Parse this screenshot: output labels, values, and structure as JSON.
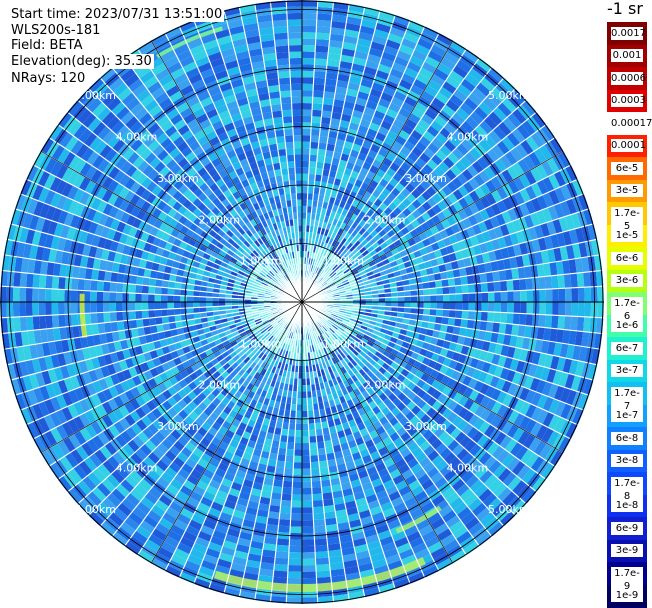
{
  "info": {
    "start_time": "Start time: 2023/07/31 13:51:00",
    "device": "WLS200s-181",
    "field": "Field: BETA",
    "elevation": "Elevation(deg): 35.30",
    "nrays": "NRays: 120"
  },
  "unit": "-1 sr",
  "range_rings": {
    "labels": [
      "1.00km",
      "2.00km",
      "3.00km",
      "4.00km",
      "5.00km"
    ],
    "values_km": [
      1,
      2,
      3,
      4,
      5
    ]
  },
  "colorbar": {
    "labels": [
      "0.0017",
      "0.001",
      "0.0006",
      "0.0003",
      "0.00017",
      "0.0001",
      "6e-5",
      "3e-5",
      "1.7e-5",
      "1e-5",
      "6e-6",
      "3e-6",
      "1.7e-6",
      "1e-6",
      "6e-7",
      "3e-7",
      "1.7e-7",
      "1e-7",
      "6e-8",
      "3e-8",
      "1.7e-8",
      "1e-8",
      "6e-9",
      "3e-9",
      "1.7e-9",
      "1e-9"
    ],
    "colors": [
      "#800000",
      "#a00000",
      "#c00000",
      "#e00000",
      "#ffffff",
      "#ff2000",
      "#ff6a00",
      "#ff9a00",
      "#ffc800",
      "#ffee00",
      "#e6ff00",
      "#b6ff10",
      "#80ff70",
      "#40ffa8",
      "#20f0d0",
      "#10d8e8",
      "#10c0f0",
      "#10a0ff",
      "#1080ff",
      "#1060ff",
      "#1048ff",
      "#1030f0",
      "#1020d0",
      "#0810b0",
      "#000090",
      "#000060"
    ]
  }
}
